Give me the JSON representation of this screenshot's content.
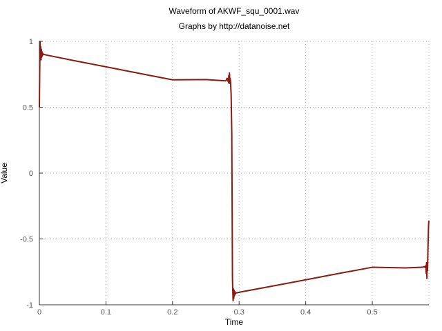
{
  "chart_data": {
    "type": "line",
    "title": "Waveform of AKWF_squ_0001.wav",
    "subtitle": "Graphs by http://datanoise.net",
    "xlabel": "Time",
    "ylabel": "Value",
    "xlim": [
      0,
      0.585
    ],
    "ylim": [
      -1,
      1
    ],
    "x_ticks": [
      0,
      0.1,
      0.2,
      0.3,
      0.4,
      0.5
    ],
    "x_tick_labels": [
      "0",
      "0.1",
      "0.2",
      "0.3",
      "0.4",
      "0.5"
    ],
    "y_ticks": [
      1,
      0.5,
      0,
      -0.5,
      -1
    ],
    "y_tick_labels": [
      "1",
      "0.5",
      "0",
      "-0.5",
      "-1"
    ],
    "grid": true,
    "series_color": "#8b1a10",
    "series": [
      {
        "x": [
          0,
          0.0005,
          0.001,
          0.0015,
          0.002,
          0.0025,
          0.003,
          0.0035,
          0.004,
          0.0045,
          0.005,
          0.006,
          0.008,
          0.01,
          0.05,
          0.1,
          0.15,
          0.2,
          0.25,
          0.28,
          0.282,
          0.284,
          0.2845,
          0.285,
          0.2855,
          0.286,
          0.2865,
          0.287,
          0.288,
          0.289,
          0.29,
          0.2905,
          0.291,
          0.2915,
          0.292,
          0.2925,
          0.293,
          0.2935,
          0.294,
          0.295,
          0.296,
          0.298,
          0.3,
          0.35,
          0.4,
          0.45,
          0.5,
          0.55,
          0.575,
          0.578,
          0.58,
          0.5805,
          0.581,
          0.5815,
          0.582,
          0.5825,
          0.583,
          0.5835,
          0.584,
          0.5845,
          0.585
        ],
        "y": [
          0.5,
          0.75,
          1.0,
          0.87,
          0.96,
          0.86,
          0.94,
          0.88,
          0.92,
          0.89,
          0.91,
          0.9,
          0.9,
          0.897,
          0.856,
          0.807,
          0.757,
          0.708,
          0.71,
          0.7,
          0.72,
          0.69,
          0.74,
          0.68,
          0.76,
          0.69,
          0.72,
          0.7,
          0.6,
          0.3,
          -0.8,
          -0.9,
          -0.97,
          -0.88,
          -0.95,
          -0.89,
          -0.93,
          -0.9,
          -0.92,
          -0.91,
          -0.91,
          -0.907,
          -0.905,
          -0.858,
          -0.81,
          -0.762,
          -0.715,
          -0.72,
          -0.715,
          -0.71,
          -0.72,
          -0.7,
          -0.76,
          -0.68,
          -0.8,
          -0.7,
          -0.74,
          -0.6,
          -0.5,
          -0.4,
          -0.36
        ]
      }
    ]
  }
}
